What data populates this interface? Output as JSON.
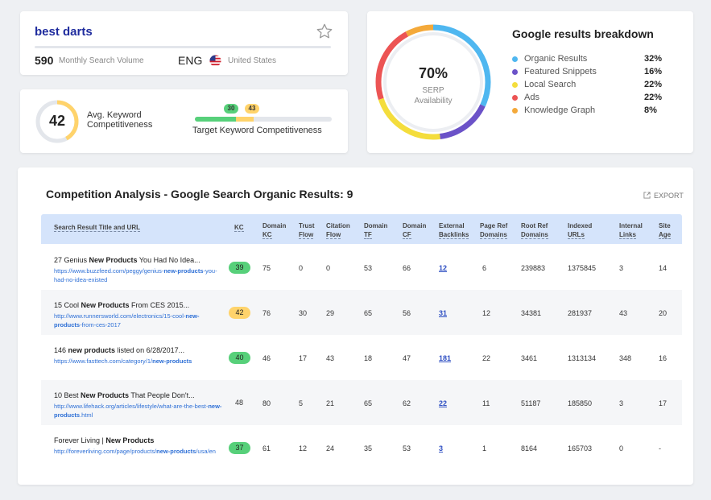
{
  "keyword": {
    "title": "best darts",
    "volume": "590",
    "volume_label": "Monthly Search Volume",
    "language": "ENG",
    "country": "United States"
  },
  "competitiveness": {
    "avg_value": "42",
    "avg_fraction": 0.42,
    "avg_label": "Avg. Keyword Competitiveness",
    "target_low": "30",
    "target_high": "43",
    "target_label": "Target Keyword Competitiveness",
    "colors": {
      "low": "#57d07a",
      "mid": "#ffd36b",
      "track": "#e3e6eb"
    }
  },
  "serp": {
    "percent": "70%",
    "label": "SERP Availability",
    "title": "Google results breakdown",
    "breakdown": [
      {
        "name": "Organic Results",
        "value": "32%",
        "fraction": 0.32,
        "color": "#4fb7f0"
      },
      {
        "name": "Featured Snippets",
        "value": "16%",
        "fraction": 0.16,
        "color": "#6b52c8"
      },
      {
        "name": "Local Search",
        "value": "22%",
        "fraction": 0.22,
        "color": "#f4dd3c"
      },
      {
        "name": "Ads",
        "value": "22%",
        "fraction": 0.22,
        "color": "#ec5454"
      },
      {
        "name": "Knowledge Graph",
        "value": "8%",
        "fraction": 0.08,
        "color": "#f4a93a"
      }
    ]
  },
  "competition": {
    "title": "Competition Analysis - Google Search Organic Results: 9",
    "export_label": "EXPORT",
    "headers": {
      "title_url": "Search Result Title and URL",
      "kc": "KC",
      "domain_kc": [
        "Domain",
        "KC"
      ],
      "trust_flow": [
        "Trust",
        "Flow"
      ],
      "citation_flow": [
        "Citation",
        "Flow"
      ],
      "domain_tf": [
        "Domain",
        "TF"
      ],
      "domain_cf": [
        "Domain",
        "CF"
      ],
      "external_backlinks": [
        "External",
        "Backlinks"
      ],
      "page_ref_domains": [
        "Page Ref",
        "Domains"
      ],
      "root_ref_domains": [
        "Root Ref",
        "Domains"
      ],
      "indexed_urls": [
        "Indexed",
        "URLs"
      ],
      "internal_links": [
        "Internal",
        "Links"
      ],
      "site_age": [
        "Site",
        "Age"
      ]
    },
    "rows": [
      {
        "title_pre": "27 Genius ",
        "title_bold": "New Products",
        "title_post": " You Had No Idea...",
        "url_parts": [
          "https://www.buzzfeed.com/peggy/genius-",
          "new-products",
          "-you-had-no-idea-existed"
        ],
        "kc": "39",
        "kc_color": "green",
        "domain_kc": "75",
        "trust_flow": "0",
        "citation_flow": "0",
        "domain_tf": "53",
        "domain_cf": "66",
        "external_backlinks": "12",
        "page_ref_domains": "6",
        "root_ref_domains": "239883",
        "indexed_urls": "1375845",
        "internal_links": "3",
        "site_age": "14"
      },
      {
        "title_pre": "15 Cool ",
        "title_bold": "New Products",
        "title_post": " From CES 2015...",
        "url_parts": [
          "http://www.runnersworld.com/electronics/15-cool-",
          "new-products",
          "-from-ces-2017"
        ],
        "kc": "42",
        "kc_color": "yellow",
        "domain_kc": "76",
        "trust_flow": "30",
        "citation_flow": "29",
        "domain_tf": "65",
        "domain_cf": "56",
        "external_backlinks": "31",
        "page_ref_domains": "12",
        "root_ref_domains": "34381",
        "indexed_urls": "281937",
        "internal_links": "43",
        "site_age": "20"
      },
      {
        "title_pre": "146 ",
        "title_bold": "new products",
        "title_post": " listed on 6/28/2017...",
        "url_parts": [
          "https://www.fasttech.com/category/1/",
          "new-products",
          ""
        ],
        "kc": "40",
        "kc_color": "green",
        "domain_kc": "46",
        "trust_flow": "17",
        "citation_flow": "43",
        "domain_tf": "18",
        "domain_cf": "47",
        "external_backlinks": "181",
        "page_ref_domains": "22",
        "root_ref_domains": "3461",
        "indexed_urls": "1313134",
        "internal_links": "348",
        "site_age": "16"
      },
      {
        "title_pre": "10 Best ",
        "title_bold": "New Products",
        "title_post": " That People Don't...",
        "url_parts": [
          "http://www.lifehack.org/articles/lifestyle/what-are-the-best-",
          "new-products",
          ".html"
        ],
        "kc": "48",
        "kc_color": "none",
        "domain_kc": "80",
        "trust_flow": "5",
        "citation_flow": "21",
        "domain_tf": "65",
        "domain_cf": "62",
        "external_backlinks": "22",
        "page_ref_domains": "11",
        "root_ref_domains": "51187",
        "indexed_urls": "185850",
        "internal_links": "3",
        "site_age": "17"
      },
      {
        "title_pre": "Forever Living | ",
        "title_bold": "New Products",
        "title_post": "",
        "url_parts": [
          "http://foreverliving.com/page/products/",
          "new-products",
          "/usa/en"
        ],
        "kc": "37",
        "kc_color": "green",
        "domain_kc": "61",
        "trust_flow": "12",
        "citation_flow": "24",
        "domain_tf": "35",
        "domain_cf": "53",
        "external_backlinks": "3",
        "page_ref_domains": "1",
        "root_ref_domains": "8164",
        "indexed_urls": "165703",
        "internal_links": "0",
        "site_age": "-"
      }
    ]
  }
}
